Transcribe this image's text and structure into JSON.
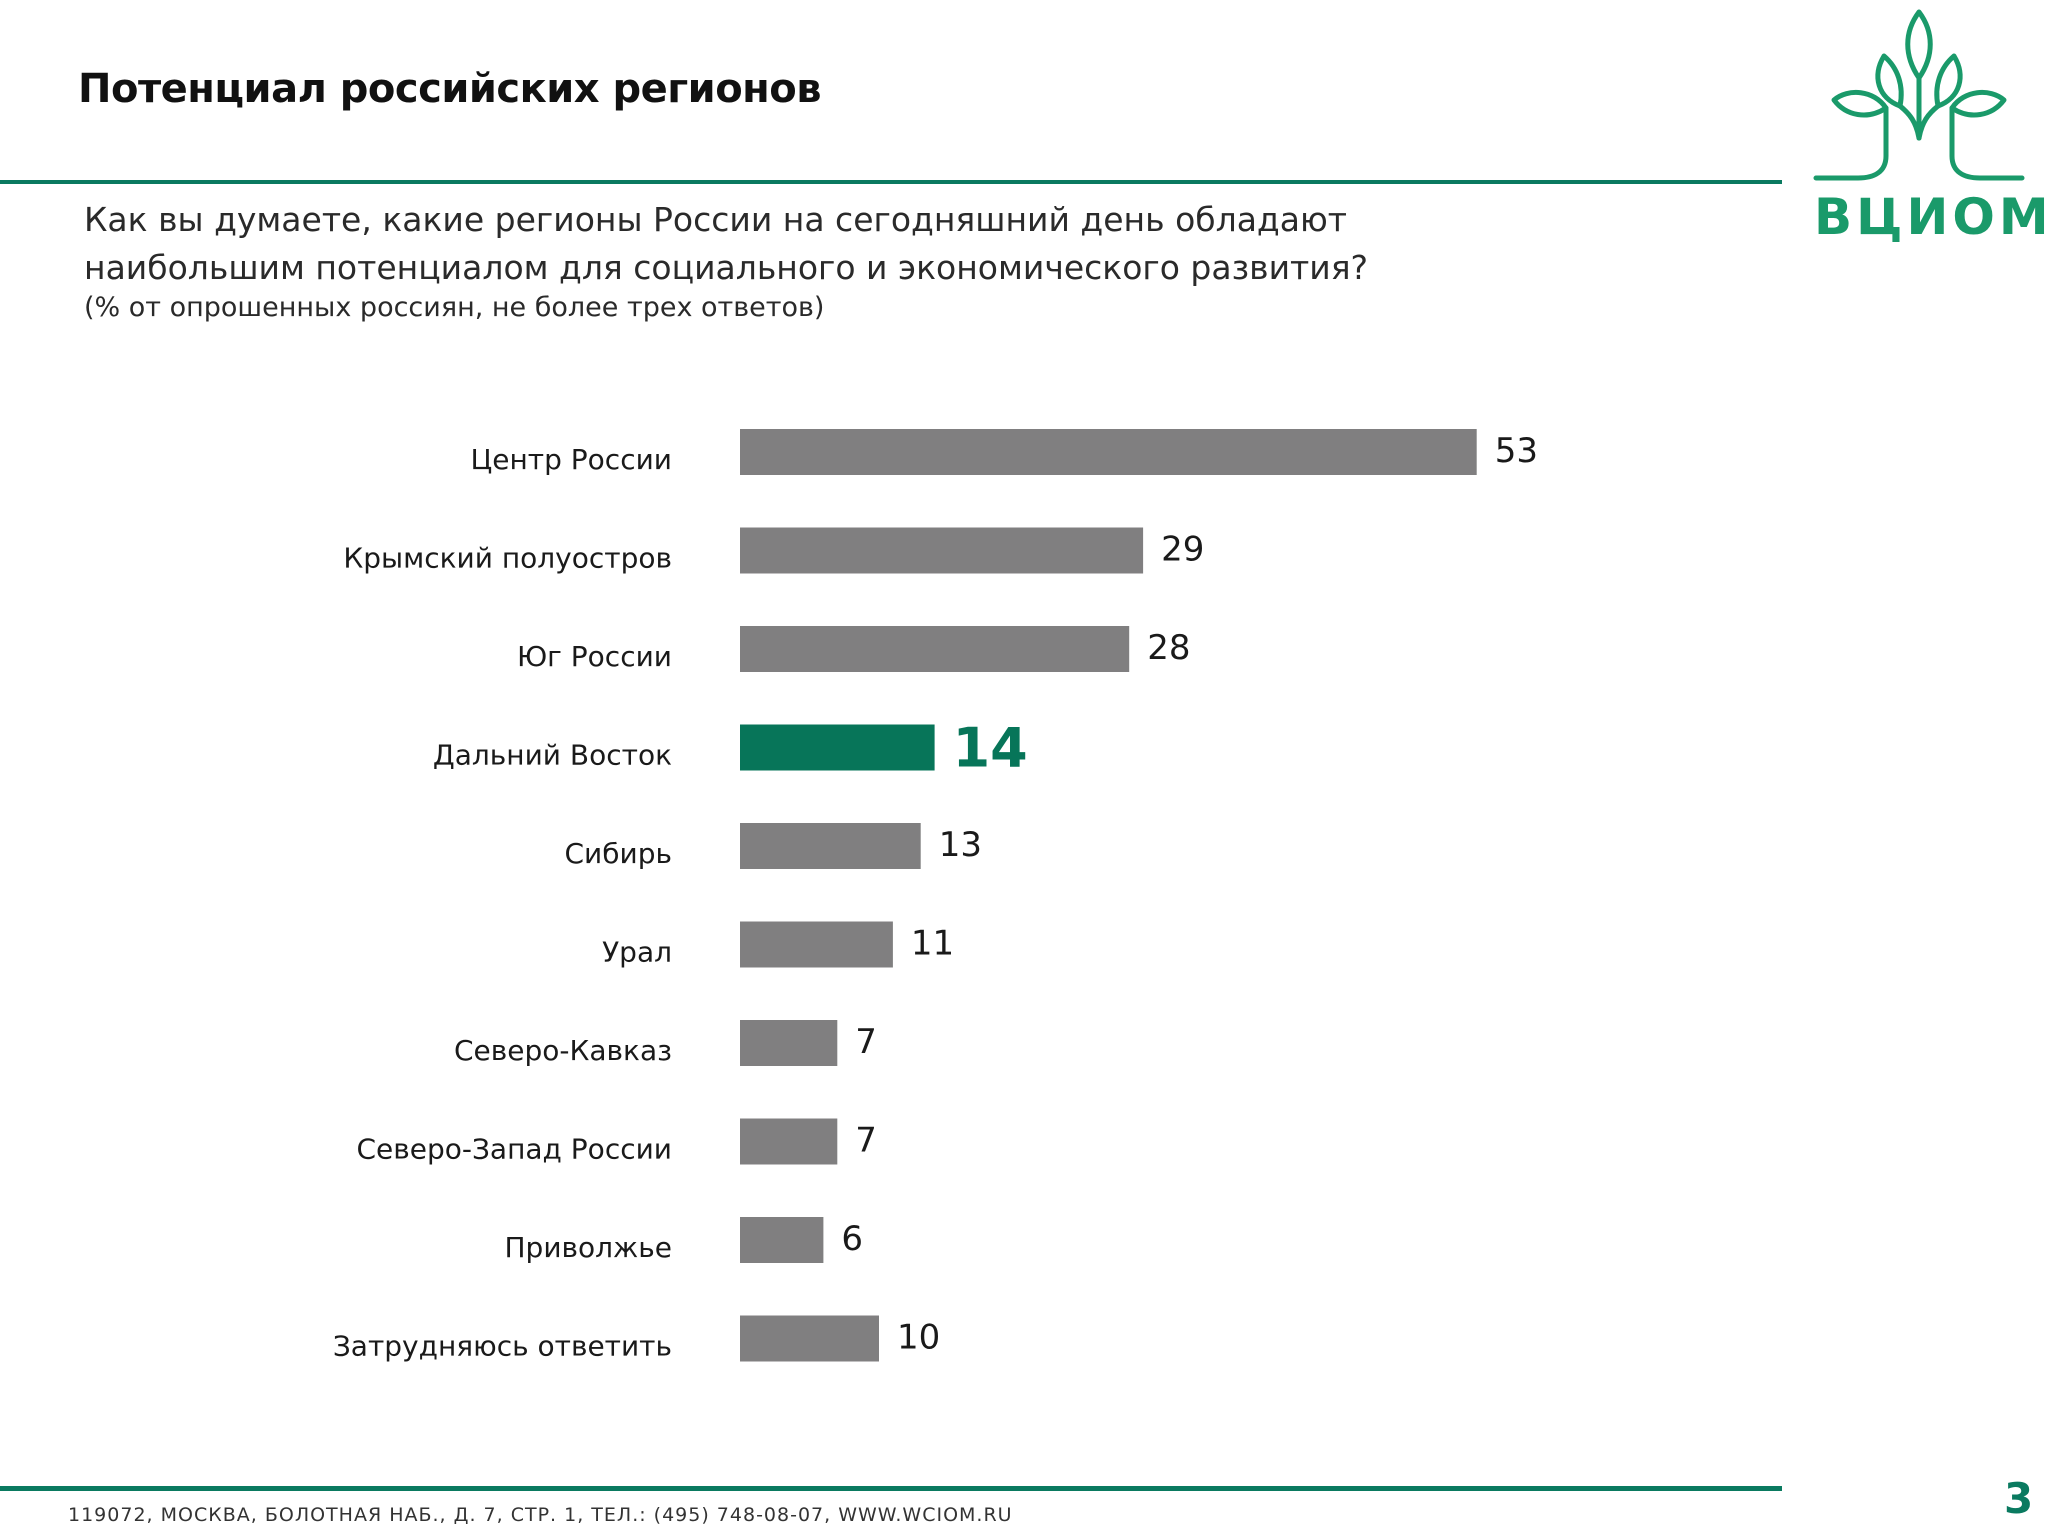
{
  "slide": {
    "title": "Потенциал российских регионов",
    "question": "Как вы думаете, какие регионы России на сегодняшний день обладают наибольшим потенциалом для социального и экономического развития?",
    "note": "(% от опрошенных россиян, не более трех ответов)"
  },
  "logo": {
    "text": "ВЦИОМ",
    "icon": "tree-logo-icon",
    "color": "#1a9a6a"
  },
  "colors": {
    "bar_default": "#807f80",
    "bar_highlight": "#077559",
    "rule": "#0a7a60"
  },
  "chart_data": {
    "type": "bar",
    "orientation": "horizontal",
    "categories": [
      "Центр России",
      "Крымский полуостров",
      "Юг России",
      "Дальний Восток",
      "Сибирь",
      "Урал",
      "Северо-Кавказ",
      "Северо-Запад России",
      "Приволжье",
      "Затрудняюсь ответить"
    ],
    "values": [
      53,
      29,
      28,
      14,
      13,
      11,
      7,
      7,
      6,
      10
    ],
    "highlight_index": 3,
    "grid": false,
    "legend": "none"
  },
  "footer": {
    "address": "119072, МОСКВА, БОЛОТНАЯ НАБ., Д. 7, СТР. 1, ТЕЛ.: (495) 748-08-07,  WWW.WCIOM.RU",
    "page": "3"
  }
}
